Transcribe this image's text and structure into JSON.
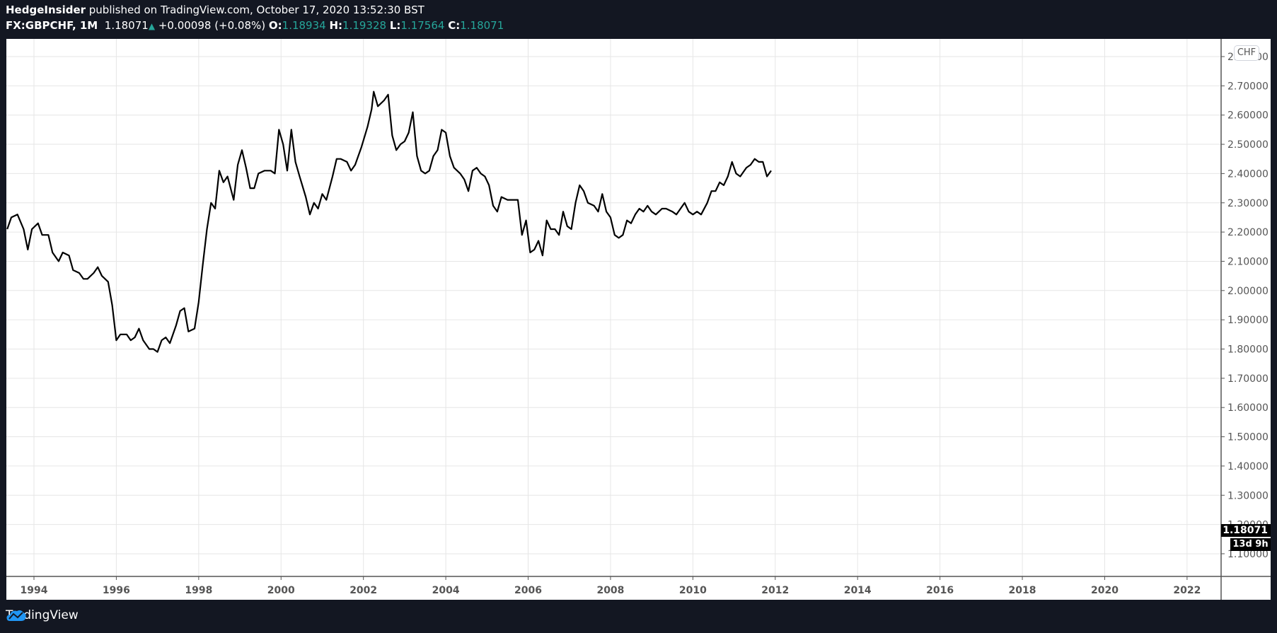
{
  "header": {
    "publisher": "HedgeInsider",
    "published_text": " published on TradingView.com, October 17, 2020 13:52:30 BST",
    "symbol": "FX:GBPCHF, 1M",
    "last": "1.18071",
    "change": "+0.00098 (+0.08%)",
    "open_label": "O:",
    "open": "1.18934",
    "high_label": "H:",
    "high": "1.19328",
    "low_label": "L:",
    "low": "1.17564",
    "close_label": "C:",
    "close": "1.18071",
    "up_arrow": "▲"
  },
  "currency_badge": "CHF",
  "last_price_label": "1.18071",
  "countdown_label": "13d 9h",
  "footer": {
    "brand": "TradingView"
  },
  "colors": {
    "background": "#131722",
    "up": "#26a69a",
    "line": "#000000",
    "grid": "#e6e6e6"
  },
  "chart_data": {
    "type": "line",
    "title": "FX:GBPCHF, 1M",
    "xlabel": "",
    "ylabel": "CHF",
    "ylim": [
      1.05,
      2.82
    ],
    "xlim": [
      1993.3,
      2023.7
    ],
    "grid": true,
    "y_ticks": [
      "2.80000",
      "2.70000",
      "2.60000",
      "2.50000",
      "2.40000",
      "2.30000",
      "2.20000",
      "2.10000",
      "2.00000",
      "1.90000",
      "1.80000",
      "1.70000",
      "1.60000",
      "1.50000",
      "1.40000",
      "1.30000",
      "1.20000",
      "1.10000"
    ],
    "x_ticks": [
      "1994",
      "1996",
      "1998",
      "2000",
      "2002",
      "2004",
      "2006",
      "2008",
      "2010",
      "2012",
      "2014",
      "2016",
      "2018",
      "2020",
      "2022"
    ],
    "series": [
      {
        "name": "GBPCHF close",
        "points": [
          [
            1993.35,
            2.21
          ],
          [
            1993.45,
            2.25
          ],
          [
            1993.6,
            2.26
          ],
          [
            1993.75,
            2.21
          ],
          [
            1993.85,
            2.14
          ],
          [
            1993.95,
            2.21
          ],
          [
            1994.1,
            2.23
          ],
          [
            1994.2,
            2.19
          ],
          [
            1994.35,
            2.19
          ],
          [
            1994.45,
            2.13
          ],
          [
            1994.6,
            2.1
          ],
          [
            1994.7,
            2.13
          ],
          [
            1994.85,
            2.12
          ],
          [
            1994.95,
            2.07
          ],
          [
            1995.1,
            2.06
          ],
          [
            1995.2,
            2.04
          ],
          [
            1995.3,
            2.04
          ],
          [
            1995.45,
            2.06
          ],
          [
            1995.55,
            2.08
          ],
          [
            1995.65,
            2.05
          ],
          [
            1995.8,
            2.03
          ],
          [
            1995.9,
            1.95
          ],
          [
            1996.0,
            1.83
          ],
          [
            1996.1,
            1.85
          ],
          [
            1996.25,
            1.85
          ],
          [
            1996.35,
            1.83
          ],
          [
            1996.45,
            1.84
          ],
          [
            1996.55,
            1.87
          ],
          [
            1996.65,
            1.83
          ],
          [
            1996.8,
            1.8
          ],
          [
            1996.9,
            1.8
          ],
          [
            1997.0,
            1.79
          ],
          [
            1997.1,
            1.83
          ],
          [
            1997.2,
            1.84
          ],
          [
            1997.3,
            1.82
          ],
          [
            1997.45,
            1.88
          ],
          [
            1997.55,
            1.93
          ],
          [
            1997.65,
            1.94
          ],
          [
            1997.75,
            1.86
          ],
          [
            1997.9,
            1.87
          ],
          [
            1998.0,
            1.96
          ],
          [
            1998.1,
            2.09
          ],
          [
            1998.2,
            2.21
          ],
          [
            1998.3,
            2.3
          ],
          [
            1998.4,
            2.28
          ],
          [
            1998.5,
            2.41
          ],
          [
            1998.6,
            2.37
          ],
          [
            1998.7,
            2.39
          ],
          [
            1998.85,
            2.31
          ],
          [
            1998.95,
            2.43
          ],
          [
            1999.05,
            2.48
          ],
          [
            1999.15,
            2.42
          ],
          [
            1999.25,
            2.35
          ],
          [
            1999.35,
            2.35
          ],
          [
            1999.45,
            2.4
          ],
          [
            1999.6,
            2.41
          ],
          [
            1999.75,
            2.41
          ],
          [
            1999.85,
            2.4
          ],
          [
            1999.95,
            2.55
          ],
          [
            2000.05,
            2.5
          ],
          [
            2000.15,
            2.41
          ],
          [
            2000.25,
            2.55
          ],
          [
            2000.35,
            2.44
          ],
          [
            2000.45,
            2.39
          ],
          [
            2000.6,
            2.32
          ],
          [
            2000.7,
            2.26
          ],
          [
            2000.8,
            2.3
          ],
          [
            2000.9,
            2.28
          ],
          [
            2001.0,
            2.33
          ],
          [
            2001.1,
            2.31
          ],
          [
            2001.25,
            2.39
          ],
          [
            2001.35,
            2.45
          ],
          [
            2001.45,
            2.45
          ],
          [
            2001.6,
            2.44
          ],
          [
            2001.7,
            2.41
          ],
          [
            2001.8,
            2.43
          ],
          [
            2001.95,
            2.49
          ],
          [
            2002.1,
            2.56
          ],
          [
            2002.2,
            2.62
          ],
          [
            2002.25,
            2.68
          ],
          [
            2002.35,
            2.63
          ],
          [
            2002.5,
            2.65
          ],
          [
            2002.6,
            2.67
          ],
          [
            2002.7,
            2.53
          ],
          [
            2002.8,
            2.48
          ],
          [
            2002.9,
            2.5
          ],
          [
            2003.0,
            2.51
          ],
          [
            2003.1,
            2.54
          ],
          [
            2003.2,
            2.61
          ],
          [
            2003.3,
            2.46
          ],
          [
            2003.4,
            2.41
          ],
          [
            2003.5,
            2.4
          ],
          [
            2003.6,
            2.41
          ],
          [
            2003.7,
            2.46
          ],
          [
            2003.8,
            2.48
          ],
          [
            2003.9,
            2.55
          ],
          [
            2004.0,
            2.54
          ],
          [
            2004.1,
            2.46
          ],
          [
            2004.2,
            2.42
          ],
          [
            2004.35,
            2.4
          ],
          [
            2004.45,
            2.38
          ],
          [
            2004.55,
            2.34
          ],
          [
            2004.65,
            2.41
          ],
          [
            2004.75,
            2.42
          ],
          [
            2004.85,
            2.4
          ],
          [
            2004.95,
            2.39
          ],
          [
            2005.05,
            2.36
          ],
          [
            2005.15,
            2.29
          ],
          [
            2005.25,
            2.27
          ],
          [
            2005.35,
            2.32
          ],
          [
            2005.5,
            2.31
          ],
          [
            2005.65,
            2.31
          ],
          [
            2005.75,
            2.31
          ],
          [
            2005.85,
            2.19
          ],
          [
            2005.95,
            2.24
          ],
          [
            2006.05,
            2.13
          ],
          [
            2006.15,
            2.14
          ],
          [
            2006.25,
            2.17
          ],
          [
            2006.35,
            2.12
          ],
          [
            2006.45,
            2.24
          ],
          [
            2006.55,
            2.21
          ],
          [
            2006.65,
            2.21
          ],
          [
            2006.75,
            2.19
          ],
          [
            2006.85,
            2.27
          ],
          [
            2006.95,
            2.22
          ],
          [
            2007.05,
            2.21
          ],
          [
            2007.15,
            2.3
          ],
          [
            2007.25,
            2.36
          ],
          [
            2007.35,
            2.34
          ],
          [
            2007.45,
            2.3
          ],
          [
            2007.6,
            2.29
          ],
          [
            2007.7,
            2.27
          ],
          [
            2007.8,
            2.33
          ],
          [
            2007.9,
            2.27
          ],
          [
            2008.0,
            2.25
          ],
          [
            2008.1,
            2.19
          ],
          [
            2008.2,
            2.18
          ],
          [
            2008.3,
            2.19
          ],
          [
            2008.4,
            2.24
          ],
          [
            2008.5,
            2.23
          ],
          [
            2008.6,
            2.26
          ],
          [
            2008.7,
            2.28
          ],
          [
            2008.8,
            2.27
          ],
          [
            2008.9,
            2.29
          ],
          [
            2009.0,
            2.27
          ],
          [
            2009.1,
            2.26
          ],
          [
            2009.25,
            2.28
          ],
          [
            2009.35,
            2.28
          ],
          [
            2009.5,
            2.27
          ],
          [
            2009.6,
            2.26
          ],
          [
            2009.7,
            2.28
          ],
          [
            2009.8,
            2.3
          ],
          [
            2009.9,
            2.27
          ],
          [
            2010.0,
            2.26
          ],
          [
            2010.1,
            2.27
          ],
          [
            2010.2,
            2.26
          ],
          [
            2010.35,
            2.3
          ],
          [
            2010.45,
            2.34
          ],
          [
            2010.55,
            2.34
          ],
          [
            2010.65,
            2.37
          ],
          [
            2010.75,
            2.36
          ],
          [
            2010.85,
            2.39
          ],
          [
            2010.95,
            2.44
          ],
          [
            2011.05,
            2.4
          ],
          [
            2011.15,
            2.39
          ],
          [
            2011.3,
            2.42
          ],
          [
            2011.4,
            2.43
          ],
          [
            2011.5,
            2.45
          ],
          [
            2011.6,
            2.44
          ],
          [
            2011.7,
            2.44
          ],
          [
            2011.8,
            2.39
          ],
          [
            2011.9,
            2.41
          ]
        ]
      }
    ]
  }
}
